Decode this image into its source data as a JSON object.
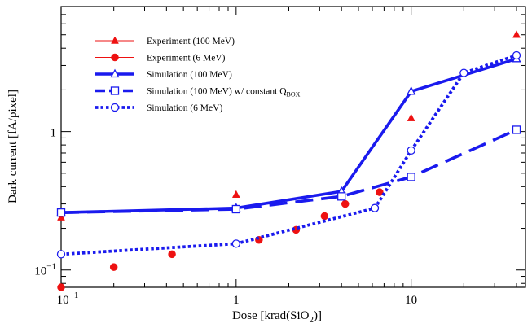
{
  "chart_data": {
    "type": "scatter",
    "title": "",
    "xlabel": "Dose [krad(SiO2)]",
    "xlabel_parts": [
      "Dose [krad(SiO",
      "2",
      ")]"
    ],
    "ylabel": "Dark current [fA/pixel]",
    "xscale": "log",
    "yscale": "log",
    "xlim": [
      0.1,
      45
    ],
    "ylim": [
      0.075,
      8
    ],
    "x_ticks": [
      {
        "value": 0.1,
        "base": "10",
        "exp": "−1"
      },
      {
        "value": 1,
        "label": "1"
      },
      {
        "value": 10,
        "label": "10"
      }
    ],
    "y_ticks": [
      {
        "value": 0.1,
        "base": "10",
        "exp": "−1"
      },
      {
        "value": 1,
        "label": "1"
      }
    ],
    "grid": false,
    "legend_position": "top-left",
    "series": [
      {
        "name": "Experiment (100 MeV)",
        "kind": "points",
        "marker": "triangle-filled",
        "color": "#ee1111",
        "x": [
          0.1,
          1,
          10,
          40
        ],
        "y": [
          0.24,
          0.35,
          1.25,
          5.0
        ]
      },
      {
        "name": "Experiment (6 MeV)",
        "kind": "points",
        "marker": "circle-filled",
        "color": "#ee1111",
        "x": [
          0.1,
          0.2,
          0.43,
          1.35,
          2.2,
          3.2,
          4.2,
          6.6
        ],
        "y": [
          0.075,
          0.105,
          0.13,
          0.165,
          0.195,
          0.245,
          0.3,
          0.365
        ]
      },
      {
        "name": "Simulation (100 MeV)",
        "kind": "line",
        "dash": "solid",
        "marker": "triangle-open",
        "color": "#1a1aee",
        "x": [
          0.1,
          1,
          4,
          10,
          40
        ],
        "y": [
          0.26,
          0.28,
          0.37,
          1.95,
          3.35
        ]
      },
      {
        "name": "Simulation (100 MeV) w/ constant Q",
        "name_sub": "BOX",
        "kind": "line",
        "dash": "dashed",
        "marker": "square-open",
        "color": "#1a1aee",
        "x": [
          0.1,
          1,
          4,
          10,
          40
        ],
        "y": [
          0.26,
          0.275,
          0.34,
          0.47,
          1.03
        ]
      },
      {
        "name": "Simulation (6 MeV)",
        "kind": "line",
        "dash": "dotted",
        "marker": "circle-open",
        "color": "#1a1aee",
        "x": [
          0.1,
          1,
          6.2,
          10,
          20,
          40
        ],
        "y": [
          0.13,
          0.155,
          0.28,
          0.73,
          2.65,
          3.55
        ]
      }
    ]
  }
}
